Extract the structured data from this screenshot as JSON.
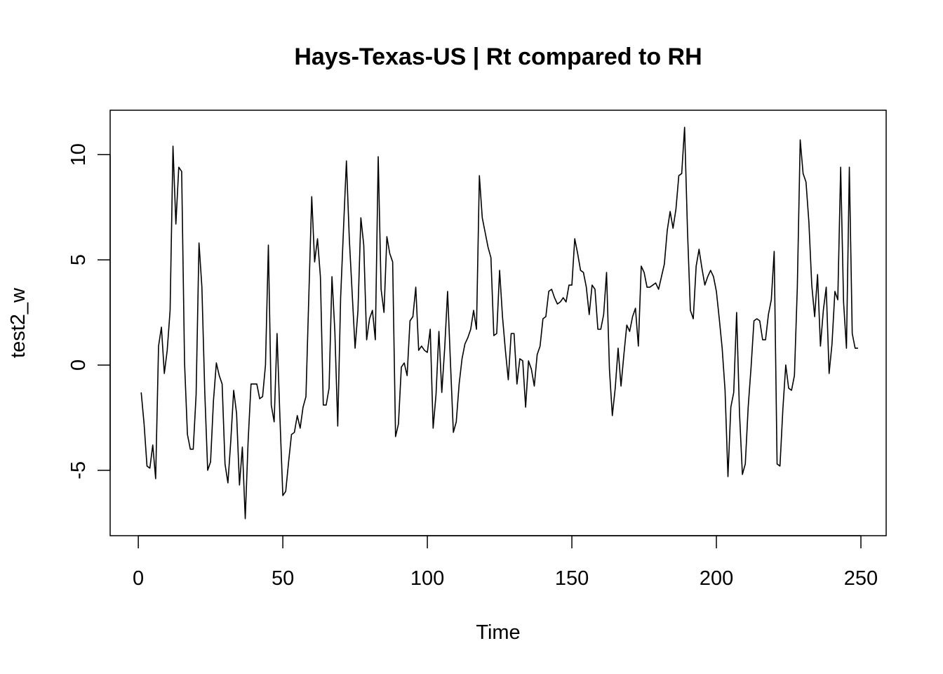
{
  "chart_data": {
    "type": "line",
    "title": "Hays-Texas-US | Rt compared to RH",
    "xlabel": "Time",
    "ylabel": "test2_w",
    "xlim": [
      1,
      248
    ],
    "ylim": [
      -7.3,
      11.3
    ],
    "x_ticks": [
      0,
      50,
      100,
      150,
      200,
      250
    ],
    "y_ticks": [
      -5,
      0,
      5,
      10
    ],
    "grid": false,
    "legend": "none",
    "line_color": "#000000",
    "series": [
      {
        "x_start": 1,
        "values": [
          -1.3,
          -2.8,
          -4.8,
          -4.9,
          -3.8,
          -5.4,
          0.9,
          1.8,
          -0.4,
          0.7,
          2.6,
          10.4,
          6.7,
          9.4,
          9.2,
          0.1,
          -3.3,
          -4.0,
          -4.0,
          -1.4,
          5.8,
          3.7,
          -1.3,
          -5.0,
          -4.6,
          -1.7,
          0.1,
          -0.5,
          -0.9,
          -4.7,
          -5.6,
          -3.6,
          -1.2,
          -2.3,
          -5.7,
          -3.9,
          -7.3,
          -3.6,
          -0.9,
          -0.9,
          -0.9,
          -1.6,
          -1.5,
          0.0,
          5.7,
          -1.9,
          -2.7,
          1.5,
          -2.5,
          -6.2,
          -6.0,
          -4.6,
          -3.3,
          -3.2,
          -2.4,
          -3.0,
          -2.0,
          -1.5,
          3.3,
          8.0,
          4.9,
          6.0,
          4.2,
          -1.9,
          -1.9,
          -1.1,
          4.2,
          1.6,
          -2.9,
          3.2,
          6.5,
          9.7,
          6.0,
          3.4,
          0.8,
          2.6,
          7.0,
          5.7,
          1.2,
          2.2,
          2.6,
          1.2,
          9.9,
          3.6,
          2.5,
          6.1,
          5.3,
          4.9,
          -3.4,
          -2.8,
          -0.1,
          0.1,
          -0.5,
          2.1,
          2.3,
          3.7,
          0.7,
          0.9,
          0.7,
          0.6,
          1.7,
          -3.0,
          -1.4,
          1.6,
          -1.3,
          0.8,
          3.5,
          0.1,
          -3.2,
          -2.7,
          -0.9,
          0.3,
          1.0,
          1.3,
          1.7,
          2.6,
          1.7,
          9.0,
          7.0,
          6.3,
          5.6,
          5.1,
          1.4,
          1.5,
          4.5,
          2.3,
          0.7,
          -0.7,
          1.5,
          1.5,
          -0.9,
          0.3,
          0.2,
          -2.0,
          0.2,
          -0.2,
          -1.0,
          0.5,
          0.9,
          2.2,
          2.3,
          3.5,
          3.6,
          3.2,
          2.9,
          3.0,
          3.2,
          3.0,
          3.8,
          3.8,
          6.0,
          5.3,
          4.5,
          4.4,
          3.7,
          2.4,
          3.8,
          3.6,
          1.7,
          1.7,
          2.4,
          4.4,
          -0.2,
          -2.4,
          -1.1,
          0.8,
          -1.0,
          0.5,
          1.9,
          1.6,
          2.3,
          2.7,
          0.9,
          4.7,
          4.4,
          3.7,
          3.7,
          3.8,
          3.9,
          3.6,
          4.2,
          4.8,
          6.4,
          7.3,
          6.5,
          7.4,
          9.0,
          9.1,
          11.3,
          6.4,
          2.6,
          2.2,
          4.7,
          5.5,
          4.6,
          3.8,
          4.2,
          4.5,
          4.2,
          3.5,
          2.2,
          0.8,
          -1.2,
          -5.3,
          -2.0,
          -1.3,
          2.5,
          -2.3,
          -5.2,
          -4.7,
          -2.0,
          -0.1,
          2.1,
          2.2,
          2.1,
          1.2,
          1.2,
          2.4,
          3.1,
          5.4,
          -4.7,
          -4.8,
          -2.1,
          0.0,
          -1.1,
          -1.2,
          -0.5,
          3.7,
          10.7,
          9.1,
          8.7,
          6.8,
          3.8,
          2.3,
          4.3,
          0.9,
          2.6,
          3.7,
          -0.4,
          1.0,
          3.5,
          3.1,
          9.4,
          3.0,
          0.8,
          9.4,
          1.5,
          0.8,
          0.8
        ]
      }
    ]
  }
}
